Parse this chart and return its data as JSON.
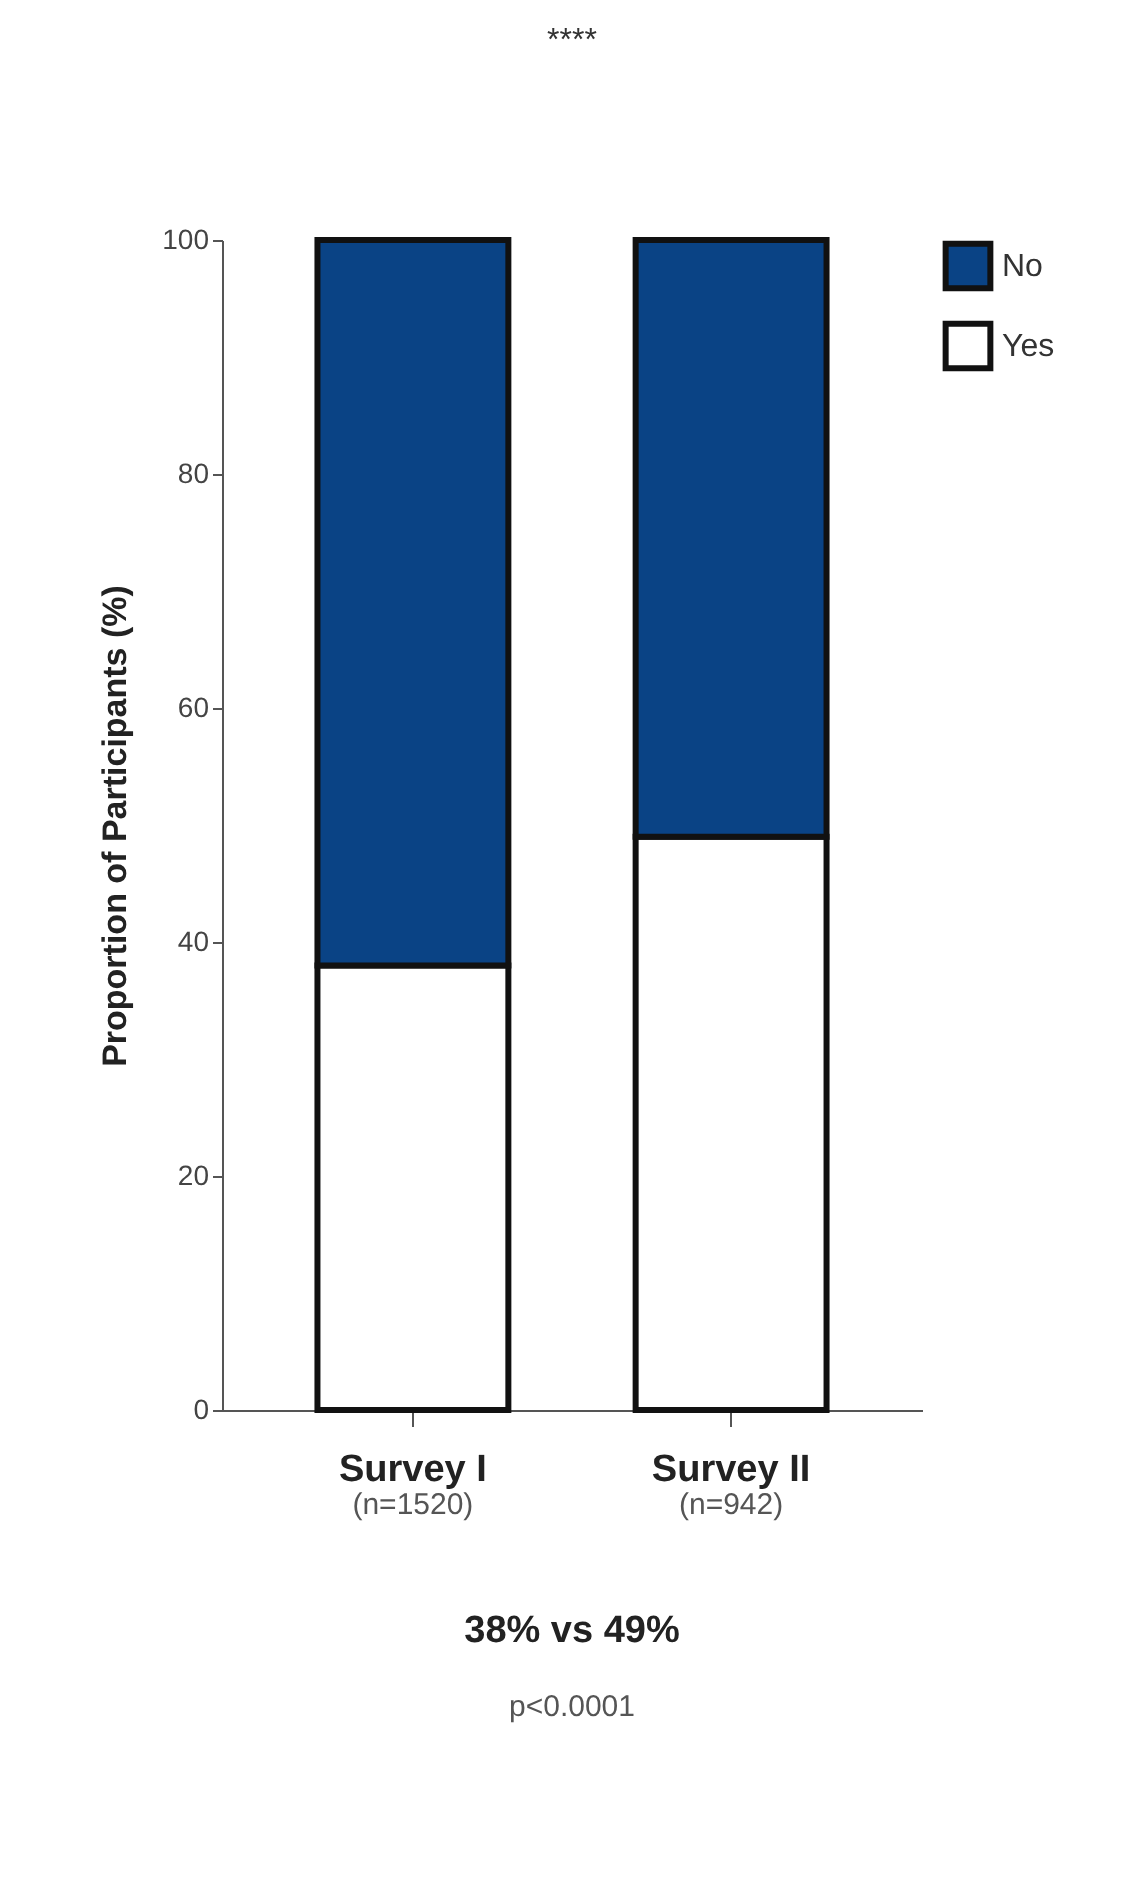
{
  "chart_data": {
    "type": "bar",
    "stacked": true,
    "ylabel": "Proportion of Participants (%)",
    "categories": [
      "Survey I",
      "Survey II"
    ],
    "series": [
      {
        "name": "Yes",
        "color": "#ffffff",
        "values": [
          38,
          49
        ]
      },
      {
        "name": "No",
        "color": "#0a4385",
        "values": [
          62,
          51
        ]
      }
    ],
    "ylim": [
      0,
      100
    ],
    "yticks": [
      0,
      20,
      40,
      60,
      80,
      100
    ],
    "grid": false,
    "legend": "top right",
    "annotations": [
      "****",
      "(n=1520)",
      "(n=942)",
      "38% vs 49%",
      "p<0.0001"
    ]
  }
}
